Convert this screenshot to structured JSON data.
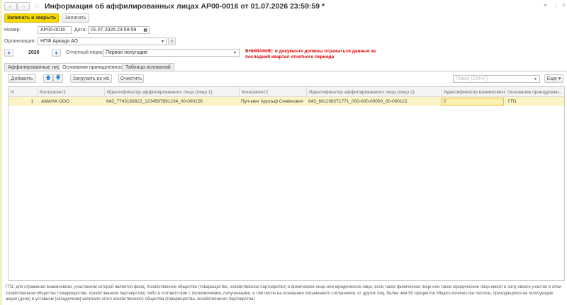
{
  "window": {
    "title": "Информация об аффилированных лицах АР00-0016 от 01.07.2026 23:59:59 *"
  },
  "toolbar": {
    "save_close": "Записать и закрыть",
    "save": "Записать"
  },
  "form": {
    "number_label": "Номер:",
    "number_value": "АР00-0016",
    "date_label": "Дата:",
    "date_value": "01.07.2026 23:59:59",
    "org_label": "Организация:",
    "org_value": "НПФ Аркада АО",
    "year": "2026",
    "period_label": "Отчетный период:",
    "period_value": "Первое полугодие",
    "warning_line1": "ВНИМАНИЕ: в документе должны отражаться данные за",
    "warning_line2": "последний квартал отчетного периода"
  },
  "tabs": [
    {
      "label": "Аффилированные лица",
      "active": false
    },
    {
      "label": "Основания принадлежности",
      "active": true
    },
    {
      "label": "Таблица оснований",
      "active": false
    }
  ],
  "table_toolbar": {
    "add": "Добавить",
    "load_xls": "Загрузить из xls",
    "clear": "Очистить",
    "search_placeholder": "Поиск (Ctrl+F)",
    "more": "Еще"
  },
  "table": {
    "headers": [
      "N",
      "Контрагент1",
      "Идентификатор аффилированного лица (лицо 1)",
      "Контрагент2",
      "Идентификатор аффилированного лица (лицо 2)",
      "Идентификатор взаимосвязи",
      "Основание принадлежн..."
    ],
    "rows": [
      [
        "1",
        "АМАНА ООО",
        "643_7743183822_1234567891234_00-000126",
        "Пуп-кинг Адольф Семёнович",
        "643_661108271771_000-000-00000_00-000115",
        "2",
        "ГП1"
      ]
    ]
  },
  "footer": {
    "note": "ГП1: для отражения взаимосвязи, участником которой является фонд, Хозяйственное общество (товарищество, хозяйственное партнерство) и физическое лицо или юридическое лицо, если такое физическое лицо или такое юридическое лицо имеет в силу своего участия в этом хозяйственном обществе (товариществе, хозяйственном партнерстве) либо в соответствии с полномочиями, полученными, в том числе на основании письменного соглашения, от других лиц, более чем 50 процентов общего количества голосов, приходящихся на голосующие акции (доли) в уставном (складочном) капитале этого хозяйственного общества (товарищества, хозяйственного партнерства)"
  },
  "colors": {
    "primary_button": "#f5d800",
    "selected_row": "#fbf4c6",
    "warning": "#e00000",
    "active_cell_border": "#f0c040"
  }
}
